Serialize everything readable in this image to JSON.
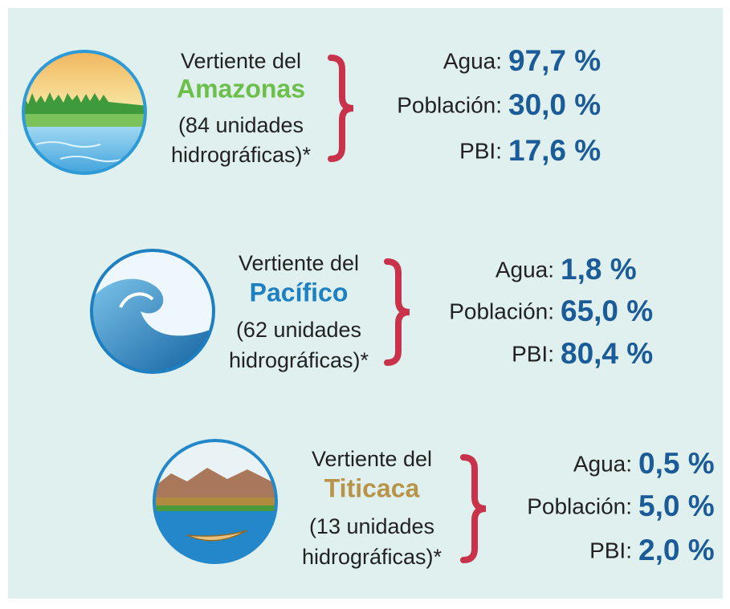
{
  "sections": [
    {
      "title": "Vertiente del",
      "name": "Amazonas",
      "note_lines": [
        "(84 unidades",
        "hidrográficas)*"
      ],
      "stats": [
        {
          "label": "Agua:",
          "value": "97,7 %"
        },
        {
          "label": "Población:",
          "value": "30,0 %"
        },
        {
          "label": "PBI:",
          "value": "17,6 %"
        }
      ]
    },
    {
      "title": "Vertiente del",
      "name": "Pacífico",
      "note_lines": [
        "(62 unidades",
        "hidrográficas)*"
      ],
      "stats": [
        {
          "label": "Agua:",
          "value": "1,8 %"
        },
        {
          "label": "Población:",
          "value": "65,0 %"
        },
        {
          "label": "PBI:",
          "value": "80,4 %"
        }
      ]
    },
    {
      "title": "Vertiente del",
      "name": "Titicaca",
      "note_lines": [
        "(13 unidades",
        "hidrográficas)*"
      ],
      "stats": [
        {
          "label": "Agua:",
          "value": "0,5 %"
        },
        {
          "label": "Población:",
          "value": "5,0 %"
        },
        {
          "label": "PBI:",
          "value": "2,0 %"
        }
      ]
    }
  ]
}
